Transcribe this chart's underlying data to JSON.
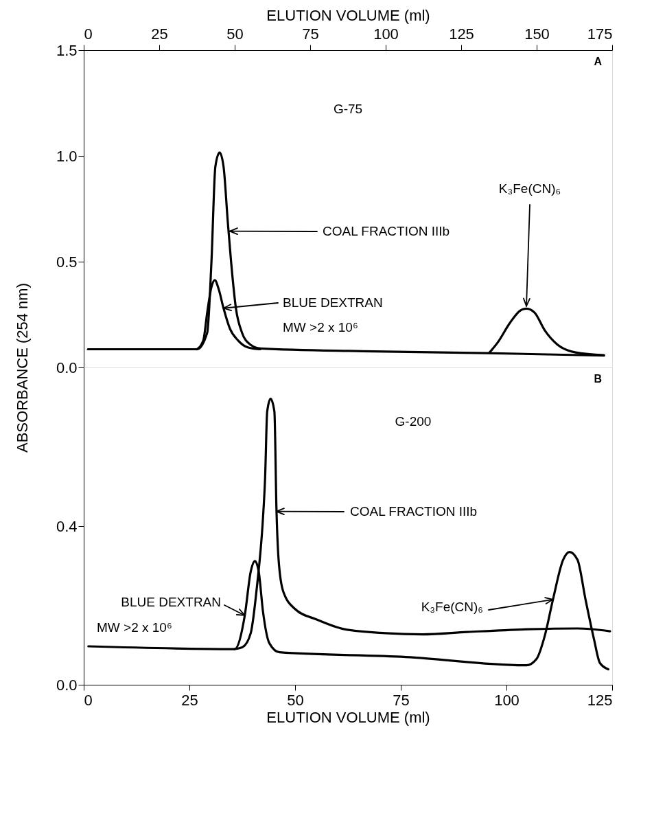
{
  "chart_data": [
    {
      "type": "line",
      "xlabel": "ELUTION VOLUME (ml)",
      "ylabel": "ABSORBANCE (254 nm)",
      "xlim": [
        0,
        175
      ],
      "xticks": [
        0,
        25,
        50,
        75,
        100,
        125,
        150,
        175
      ],
      "ylim": [
        0,
        1.5
      ],
      "yticks": [
        {
          "value": 0,
          "label": "0.0"
        },
        {
          "value": 0.5,
          "label": "0.5"
        },
        {
          "value": 1,
          "label": "1.0"
        },
        {
          "value": 1.5,
          "label": "1.5"
        }
      ],
      "series": [
        {
          "color": "#000000",
          "x": [
            1.4,
            37.5,
            40.9,
            42.3,
            43.6,
            45.0,
            46.3,
            47.7,
            48.8,
            50.4,
            52.4,
            55.1,
            58.5,
            92.4,
            133,
            172.3
          ],
          "values": [
            0.086,
            0.086,
            0.165,
            0.5,
            0.95,
            1.016,
            0.95,
            0.69,
            0.5,
            0.28,
            0.165,
            0.109,
            0.09,
            0.077,
            0.068,
            0.056
          ]
        },
        {
          "color": "#000000",
          "x": [
            37.5,
            39.6,
            40.9,
            42.3,
            43.4,
            44.7,
            46.3,
            48.4,
            51.1,
            54.5,
            58.5
          ],
          "values": [
            0.086,
            0.128,
            0.26,
            0.38,
            0.413,
            0.37,
            0.28,
            0.184,
            0.128,
            0.094,
            0.086
          ]
        },
        {
          "color": "#000000",
          "x": [
            134.4,
            137.1,
            141.2,
            144.6,
            146.6,
            149.3,
            152.7,
            156.8,
            162.9,
            172.3
          ],
          "values": [
            0.071,
            0.118,
            0.212,
            0.269,
            0.278,
            0.259,
            0.175,
            0.109,
            0.071,
            0.058
          ]
        }
      ],
      "annotations": [
        "A",
        "G-75",
        {
          "text": "COAL FRACTION IIIb",
          "x": 48.4,
          "y": 0.644
        },
        {
          "text": "BLUE DEXTRAN",
          "x": 46.3,
          "y": 0.28
        },
        "MW >2 x 10⁶",
        {
          "text": "K₃Fe(CN)₆",
          "x": 146.6,
          "y": 0.29
        }
      ]
    },
    {
      "type": "line",
      "xlabel": "ELUTION VOLUME (ml)",
      "xlim": [
        0,
        125
      ],
      "xticks": [
        0,
        25,
        50,
        75,
        100,
        125
      ],
      "ylim": [
        0,
        0.8
      ],
      "yticks": [
        {
          "value": 0,
          "label": "0.0"
        },
        {
          "value": 0.4,
          "label": "0.4"
        }
      ],
      "series": [
        {
          "color": "#000000",
          "x": [
            1.1,
            35.7,
            38.1,
            39.5,
            40.5,
            41.4,
            42.4,
            43.9,
            46.3,
            76.2,
            104.7,
            107.1,
            109.1,
            111,
            113.4,
            114.9,
            116.8,
            118.7,
            120.7,
            122.1,
            124.1
          ],
          "values": [
            0.097,
            0.09,
            0.175,
            0.285,
            0.312,
            0.285,
            0.185,
            0.105,
            0.082,
            0.07,
            0.049,
            0.065,
            0.125,
            0.215,
            0.315,
            0.335,
            0.315,
            0.215,
            0.115,
            0.055,
            0.039
          ]
        },
        {
          "color": "#000000",
          "x": [
            35.7,
            37.6,
            39.5,
            41,
            42.4,
            42.9,
            43.4,
            44.2,
            45.1,
            45.6,
            46.1,
            47.2,
            50.1,
            55,
            61.7,
            71.4,
            80.1,
            90.7,
            105.2,
            116.8,
            124.5
          ],
          "values": [
            0.09,
            0.095,
            0.13,
            0.25,
            0.42,
            0.52,
            0.689,
            0.721,
            0.689,
            0.439,
            0.315,
            0.235,
            0.19,
            0.165,
            0.14,
            0.13,
            0.127,
            0.133,
            0.14,
            0.142,
            0.135
          ]
        }
      ],
      "annotations": [
        "B",
        "G-200",
        {
          "text": "COAL FRACTION IIIb",
          "x": 45.6,
          "y": 0.437
        },
        {
          "text": "BLUE DEXTRAN",
          "x": 38.1,
          "y": 0.175
        },
        "MW >2 x 10⁶",
        {
          "text": "K₃Fe(CN)₆",
          "x": 111,
          "y": 0.215
        }
      ]
    }
  ]
}
